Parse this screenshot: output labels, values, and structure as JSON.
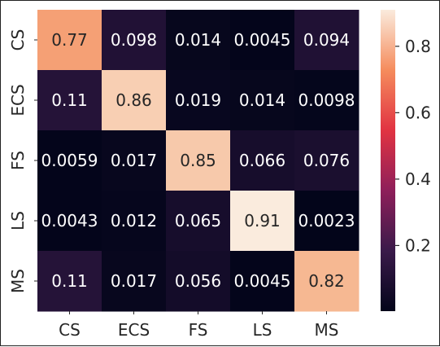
{
  "chart_data": {
    "type": "heatmap",
    "title": "",
    "xlabel": "",
    "ylabel": "",
    "x_categories": [
      "CS",
      "ECS",
      "FS",
      "LS",
      "MS"
    ],
    "y_categories": [
      "CS",
      "ECS",
      "FS",
      "LS",
      "MS"
    ],
    "values": [
      [
        0.77,
        0.098,
        0.014,
        0.0045,
        0.094
      ],
      [
        0.11,
        0.86,
        0.019,
        0.014,
        0.0098
      ],
      [
        0.0059,
        0.017,
        0.85,
        0.066,
        0.076
      ],
      [
        0.0043,
        0.012,
        0.065,
        0.91,
        0.0023
      ],
      [
        0.11,
        0.017,
        0.056,
        0.0045,
        0.82
      ]
    ],
    "labels": [
      [
        "0.77",
        "0.098",
        "0.014",
        "0.0045",
        "0.094"
      ],
      [
        "0.11",
        "0.86",
        "0.019",
        "0.014",
        "0.0098"
      ],
      [
        "0.0059",
        "0.017",
        "0.85",
        "0.066",
        "0.076"
      ],
      [
        "0.0043",
        "0.012",
        "0.065",
        "0.91",
        "0.0023"
      ],
      [
        "0.11",
        "0.017",
        "0.056",
        "0.0045",
        "0.82"
      ]
    ],
    "colormap": "rocket",
    "colorbar": {
      "range": [
        0.0023,
        0.91
      ],
      "ticks": [
        0.2,
        0.4,
        0.6,
        0.8
      ],
      "tick_labels": [
        "0.2",
        "0.4",
        "0.6",
        "0.8"
      ]
    },
    "legend": "colorbar-right",
    "grid": false
  }
}
